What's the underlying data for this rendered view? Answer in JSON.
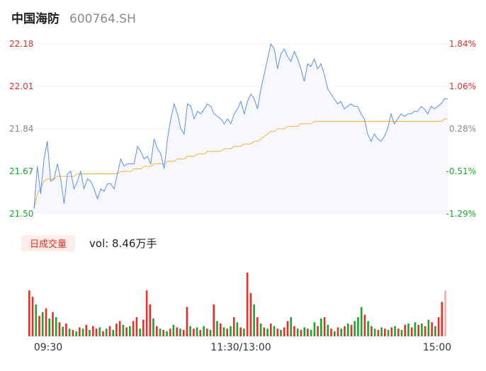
{
  "header": {
    "name": "中国海防",
    "code": "600764.SH"
  },
  "volume_panel": {
    "tab_label": "日成交量",
    "vol_label": "vol: 8.46万手"
  },
  "colors": {
    "line": "#5b8def",
    "avg": "#f0b43c",
    "up": "#e0312a",
    "down": "#1aa52b",
    "neutral": "#888888"
  },
  "chart_data": {
    "type": "line",
    "title": "",
    "y_ticks_left": [
      "22.18",
      "22.01",
      "21.84",
      "21.67",
      "21.50"
    ],
    "y_ticks_right": [
      "1.84%",
      "1.06%",
      "0.28%",
      "-0.51%",
      "-1.29%"
    ],
    "x_ticks": [
      "09:30",
      "11:30/13:00",
      "15:00"
    ],
    "ylim": [
      21.5,
      22.18
    ],
    "prev_close": 21.78,
    "price": [
      21.52,
      21.69,
      21.58,
      21.72,
      21.79,
      21.63,
      21.64,
      21.7,
      21.64,
      21.54,
      21.66,
      21.67,
      21.6,
      21.63,
      21.67,
      21.6,
      21.64,
      21.63,
      21.6,
      21.56,
      21.6,
      21.59,
      21.62,
      21.62,
      21.6,
      21.66,
      21.72,
      21.69,
      21.7,
      21.7,
      21.7,
      21.77,
      21.75,
      21.72,
      21.73,
      21.7,
      21.8,
      21.76,
      21.74,
      21.68,
      21.8,
      21.88,
      21.94,
      21.9,
      21.84,
      21.82,
      21.94,
      21.93,
      21.88,
      21.91,
      21.9,
      21.92,
      21.94,
      21.93,
      21.9,
      21.89,
      21.88,
      21.86,
      21.88,
      21.86,
      21.9,
      21.92,
      21.95,
      21.9,
      21.95,
      21.98,
      21.96,
      21.92,
      22.0,
      22.06,
      22.12,
      22.18,
      22.16,
      22.08,
      22.14,
      22.16,
      22.13,
      22.11,
      22.15,
      22.12,
      22.08,
      22.03,
      22.1,
      22.09,
      22.12,
      22.08,
      22.1,
      22.06,
      22.0,
      21.98,
      21.96,
      21.94,
      21.95,
      21.92,
      21.93,
      21.94,
      21.93,
      21.93,
      21.9,
      21.88,
      21.82,
      21.79,
      21.82,
      21.8,
      21.79,
      21.81,
      21.84,
      21.9,
      21.86,
      21.88,
      21.9,
      21.89,
      21.9,
      21.9,
      21.91,
      21.91,
      21.93,
      21.92,
      21.9,
      21.93,
      21.92,
      21.93,
      21.94,
      21.96,
      21.96
    ],
    "avg": [
      21.52,
      21.58,
      21.6,
      21.63,
      21.64,
      21.64,
      21.64,
      21.65,
      21.65,
      21.65,
      21.65,
      21.65,
      21.65,
      21.66,
      21.66,
      21.66,
      21.66,
      21.66,
      21.66,
      21.66,
      21.66,
      21.66,
      21.66,
      21.66,
      21.66,
      21.66,
      21.67,
      21.67,
      21.67,
      21.67,
      21.68,
      21.68,
      21.68,
      21.69,
      21.69,
      21.69,
      21.7,
      21.7,
      21.7,
      21.7,
      21.71,
      21.71,
      21.71,
      21.72,
      21.72,
      21.72,
      21.73,
      21.73,
      21.73,
      21.74,
      21.74,
      21.74,
      21.75,
      21.75,
      21.75,
      21.75,
      21.75,
      21.76,
      21.76,
      21.76,
      21.77,
      21.77,
      21.77,
      21.78,
      21.78,
      21.78,
      21.79,
      21.79,
      21.8,
      21.81,
      21.82,
      21.83,
      21.83,
      21.84,
      21.84,
      21.84,
      21.85,
      21.85,
      21.85,
      21.85,
      21.86,
      21.86,
      21.86,
      21.86,
      21.87,
      21.87,
      21.87,
      21.87,
      21.87,
      21.87,
      21.87,
      21.87,
      21.87,
      21.87,
      21.87,
      21.87,
      21.87,
      21.87,
      21.87,
      21.87,
      21.87,
      21.87,
      21.87,
      21.87,
      21.87,
      21.87,
      21.87,
      21.87,
      21.87,
      21.87,
      21.87,
      21.87,
      21.87,
      21.87,
      21.87,
      21.87,
      21.87,
      21.87,
      21.87,
      21.87,
      21.87,
      21.87,
      21.87,
      21.88,
      21.88
    ],
    "volume": [
      {
        "v": 0.72,
        "d": "up"
      },
      {
        "v": 0.62,
        "d": "up"
      },
      {
        "v": 0.5,
        "d": "down"
      },
      {
        "v": 0.32,
        "d": "up"
      },
      {
        "v": 0.38,
        "d": "down"
      },
      {
        "v": 0.44,
        "d": "up"
      },
      {
        "v": 0.28,
        "d": "down"
      },
      {
        "v": 0.38,
        "d": "up"
      },
      {
        "v": 0.3,
        "d": "down"
      },
      {
        "v": 0.22,
        "d": "up"
      },
      {
        "v": 0.15,
        "d": "down"
      },
      {
        "v": 0.2,
        "d": "up"
      },
      {
        "v": 0.12,
        "d": "down"
      },
      {
        "v": 0.1,
        "d": "up"
      },
      {
        "v": 0.08,
        "d": "down"
      },
      {
        "v": 0.14,
        "d": "up"
      },
      {
        "v": 0.12,
        "d": "down"
      },
      {
        "v": 0.18,
        "d": "up"
      },
      {
        "v": 0.1,
        "d": "down"
      },
      {
        "v": 0.16,
        "d": "up"
      },
      {
        "v": 0.12,
        "d": "up"
      },
      {
        "v": 0.14,
        "d": "down"
      },
      {
        "v": 0.08,
        "d": "up"
      },
      {
        "v": 0.12,
        "d": "down"
      },
      {
        "v": 0.16,
        "d": "up"
      },
      {
        "v": 0.1,
        "d": "down"
      },
      {
        "v": 0.2,
        "d": "up"
      },
      {
        "v": 0.24,
        "d": "up"
      },
      {
        "v": 0.18,
        "d": "down"
      },
      {
        "v": 0.14,
        "d": "up"
      },
      {
        "v": 0.16,
        "d": "down"
      },
      {
        "v": 0.24,
        "d": "up"
      },
      {
        "v": 0.3,
        "d": "up"
      },
      {
        "v": 0.12,
        "d": "down"
      },
      {
        "v": 0.26,
        "d": "up"
      },
      {
        "v": 0.72,
        "d": "up"
      },
      {
        "v": 0.5,
        "d": "up"
      },
      {
        "v": 0.28,
        "d": "down"
      },
      {
        "v": 0.16,
        "d": "up"
      },
      {
        "v": 0.12,
        "d": "down"
      },
      {
        "v": 0.1,
        "d": "up"
      },
      {
        "v": 0.08,
        "d": "down"
      },
      {
        "v": 0.12,
        "d": "up"
      },
      {
        "v": 0.18,
        "d": "down"
      },
      {
        "v": 0.14,
        "d": "up"
      },
      {
        "v": 0.12,
        "d": "down"
      },
      {
        "v": 0.1,
        "d": "up"
      },
      {
        "v": 0.46,
        "d": "up"
      },
      {
        "v": 0.16,
        "d": "down"
      },
      {
        "v": 0.12,
        "d": "up"
      },
      {
        "v": 0.14,
        "d": "down"
      },
      {
        "v": 0.1,
        "d": "up"
      },
      {
        "v": 0.16,
        "d": "down"
      },
      {
        "v": 0.12,
        "d": "up"
      },
      {
        "v": 0.1,
        "d": "down"
      },
      {
        "v": 0.5,
        "d": "up"
      },
      {
        "v": 0.24,
        "d": "down"
      },
      {
        "v": 0.2,
        "d": "up"
      },
      {
        "v": 0.14,
        "d": "down"
      },
      {
        "v": 0.12,
        "d": "up"
      },
      {
        "v": 0.16,
        "d": "down"
      },
      {
        "v": 0.3,
        "d": "up"
      },
      {
        "v": 0.22,
        "d": "down"
      },
      {
        "v": 0.14,
        "d": "up"
      },
      {
        "v": 0.12,
        "d": "down"
      },
      {
        "v": 1.0,
        "d": "up"
      },
      {
        "v": 0.68,
        "d": "up"
      },
      {
        "v": 0.5,
        "d": "down"
      },
      {
        "v": 0.3,
        "d": "up"
      },
      {
        "v": 0.2,
        "d": "down"
      },
      {
        "v": 0.14,
        "d": "up"
      },
      {
        "v": 0.12,
        "d": "down"
      },
      {
        "v": 0.2,
        "d": "up"
      },
      {
        "v": 0.16,
        "d": "down"
      },
      {
        "v": 0.12,
        "d": "up"
      },
      {
        "v": 0.1,
        "d": "down"
      },
      {
        "v": 0.14,
        "d": "up"
      },
      {
        "v": 0.24,
        "d": "up"
      },
      {
        "v": 0.3,
        "d": "down"
      },
      {
        "v": 0.16,
        "d": "up"
      },
      {
        "v": 0.12,
        "d": "down"
      },
      {
        "v": 0.1,
        "d": "up"
      },
      {
        "v": 0.14,
        "d": "down"
      },
      {
        "v": 0.12,
        "d": "up"
      },
      {
        "v": 0.1,
        "d": "down"
      },
      {
        "v": 0.22,
        "d": "down"
      },
      {
        "v": 0.16,
        "d": "up"
      },
      {
        "v": 0.28,
        "d": "down"
      },
      {
        "v": 0.3,
        "d": "up"
      },
      {
        "v": 0.18,
        "d": "down"
      },
      {
        "v": 0.12,
        "d": "up"
      },
      {
        "v": 0.08,
        "d": "down"
      },
      {
        "v": 0.14,
        "d": "up"
      },
      {
        "v": 0.12,
        "d": "down"
      },
      {
        "v": 0.16,
        "d": "up"
      },
      {
        "v": 0.2,
        "d": "down"
      },
      {
        "v": 0.18,
        "d": "up"
      },
      {
        "v": 0.24,
        "d": "down"
      },
      {
        "v": 0.3,
        "d": "down"
      },
      {
        "v": 0.46,
        "d": "down"
      },
      {
        "v": 0.34,
        "d": "up"
      },
      {
        "v": 0.24,
        "d": "down"
      },
      {
        "v": 0.16,
        "d": "up"
      },
      {
        "v": 0.12,
        "d": "down"
      },
      {
        "v": 0.1,
        "d": "up"
      },
      {
        "v": 0.14,
        "d": "down"
      },
      {
        "v": 0.12,
        "d": "up"
      },
      {
        "v": 0.1,
        "d": "down"
      },
      {
        "v": 0.14,
        "d": "up"
      },
      {
        "v": 0.16,
        "d": "down"
      },
      {
        "v": 0.12,
        "d": "up"
      },
      {
        "v": 0.1,
        "d": "down"
      },
      {
        "v": 0.18,
        "d": "up"
      },
      {
        "v": 0.2,
        "d": "down"
      },
      {
        "v": 0.14,
        "d": "up"
      },
      {
        "v": 0.22,
        "d": "down"
      },
      {
        "v": 0.18,
        "d": "up"
      },
      {
        "v": 0.2,
        "d": "down"
      },
      {
        "v": 0.16,
        "d": "up"
      },
      {
        "v": 0.26,
        "d": "down"
      },
      {
        "v": 0.22,
        "d": "up"
      },
      {
        "v": 0.16,
        "d": "down"
      },
      {
        "v": 0.3,
        "d": "up"
      },
      {
        "v": 0.54,
        "d": "up"
      },
      {
        "v": 0.72,
        "d": "neutral"
      }
    ]
  }
}
